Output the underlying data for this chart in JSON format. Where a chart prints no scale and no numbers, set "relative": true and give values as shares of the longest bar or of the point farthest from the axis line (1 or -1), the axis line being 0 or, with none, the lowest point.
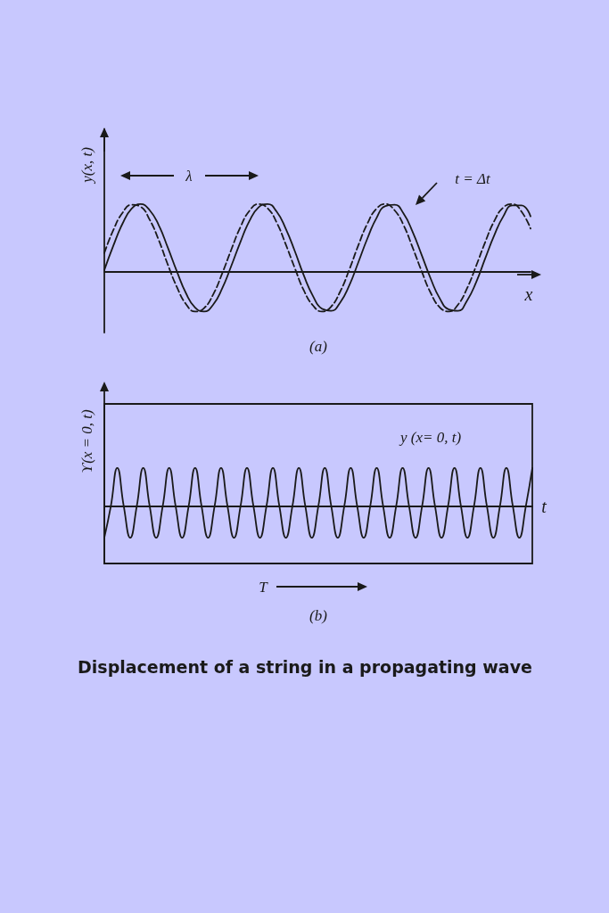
{
  "chart_data": [
    {
      "type": "line",
      "relative": true,
      "xlabel": "x",
      "ylabel": "y(x, t)",
      "annotations": [
        "λ",
        "t = Δt",
        "(a)"
      ],
      "categories": [
        null,
        null,
        null,
        null,
        null,
        null,
        null,
        null,
        null,
        null,
        null,
        null,
        null,
        null,
        null,
        null,
        null,
        null,
        null,
        null,
        null,
        null,
        null,
        null,
        null,
        null,
        null,
        null,
        null,
        null,
        null,
        null,
        null,
        null,
        null,
        null,
        null,
        null,
        null,
        null,
        null,
        null,
        null,
        null,
        null,
        null,
        null,
        null
      ],
      "series": [
        {
          "color": "#1a1a1a",
          "line_style": "solid",
          "values": [
            0.03,
            0.39,
            0.71,
            0.93,
            1.0,
            0.91,
            0.69,
            0.36,
            0.01,
            -0.31,
            -0.52,
            -0.58,
            -0.48,
            -0.24,
            0.09,
            0.44,
            0.75,
            0.95,
            1.0,
            0.89,
            0.64,
            0.31,
            -0.05,
            -0.35,
            -0.54,
            -0.57,
            -0.45,
            -0.2,
            0.14,
            0.49,
            0.79,
            0.97,
            0.99,
            0.86,
            0.59,
            0.25,
            -0.1,
            -0.39,
            -0.55,
            -0.57,
            -0.42,
            -0.15,
            0.2,
            0.54,
            0.82,
            0.98,
            0.98,
            0.82
          ]
        },
        {
          "color": "#1a1a1a",
          "line_style": "dashed",
          "values": [
            0.28,
            0.62,
            0.87,
            0.99,
            0.96,
            0.77,
            0.47,
            0.11,
            -0.22,
            -0.47,
            -0.58,
            -0.53,
            -0.33,
            -0.02,
            0.33,
            0.66,
            0.9,
            1.0,
            0.94,
            0.73,
            0.41,
            0.06,
            -0.27,
            -0.49,
            -0.58,
            -0.51,
            -0.29,
            0.03,
            0.39,
            0.71,
            0.93,
            1.0,
            0.91,
            0.69,
            0.36,
            0.01,
            -0.31,
            -0.52,
            -0.58,
            -0.48,
            -0.24,
            0.09,
            0.44,
            0.75,
            0.95,
            1.0,
            0.89,
            0.64
          ]
        }
      ]
    },
    {
      "type": "line",
      "relative": true,
      "xlabel": "t",
      "ylabel": "ϒ(x = 0, t)",
      "annotations": [
        "y (x= 0, t)",
        "T",
        "(b)",
        "Displacement of a string in a propagating wave"
      ],
      "categories": [
        null,
        null,
        null,
        null,
        null,
        null,
        null,
        null,
        null,
        null,
        null,
        null,
        null,
        null,
        null,
        null,
        null,
        null,
        null,
        null,
        null,
        null,
        null,
        null,
        null,
        null,
        null,
        null,
        null,
        null,
        null,
        null,
        null,
        null,
        null,
        null,
        null,
        null,
        null,
        null,
        null,
        null,
        null,
        null,
        null,
        null,
        null,
        null,
        null,
        null,
        null,
        null,
        null,
        null,
        null,
        null,
        null,
        null,
        null,
        null,
        null,
        null,
        null,
        null,
        null,
        null,
        null
      ],
      "series": [
        {
          "color": "#1a1a1a",
          "line_style": "solid",
          "values": [
            -0.82,
            0,
            1,
            0,
            -0.82,
            0,
            1,
            0,
            -0.82,
            0,
            1,
            0,
            -0.82,
            0,
            1,
            0,
            -0.82,
            0,
            1,
            0,
            -0.82,
            0,
            1,
            0,
            -0.82,
            0,
            1,
            0,
            -0.82,
            0,
            1,
            0,
            -0.82,
            0,
            1,
            0,
            -0.82,
            0,
            1,
            0,
            -0.82,
            0,
            1,
            0,
            -0.82,
            0,
            1,
            0,
            -0.82,
            0,
            1,
            0,
            -0.82,
            0,
            1,
            0,
            -0.82,
            0,
            1,
            0,
            -0.82,
            0,
            1,
            0,
            -0.82,
            0,
            1
          ]
        }
      ]
    }
  ]
}
